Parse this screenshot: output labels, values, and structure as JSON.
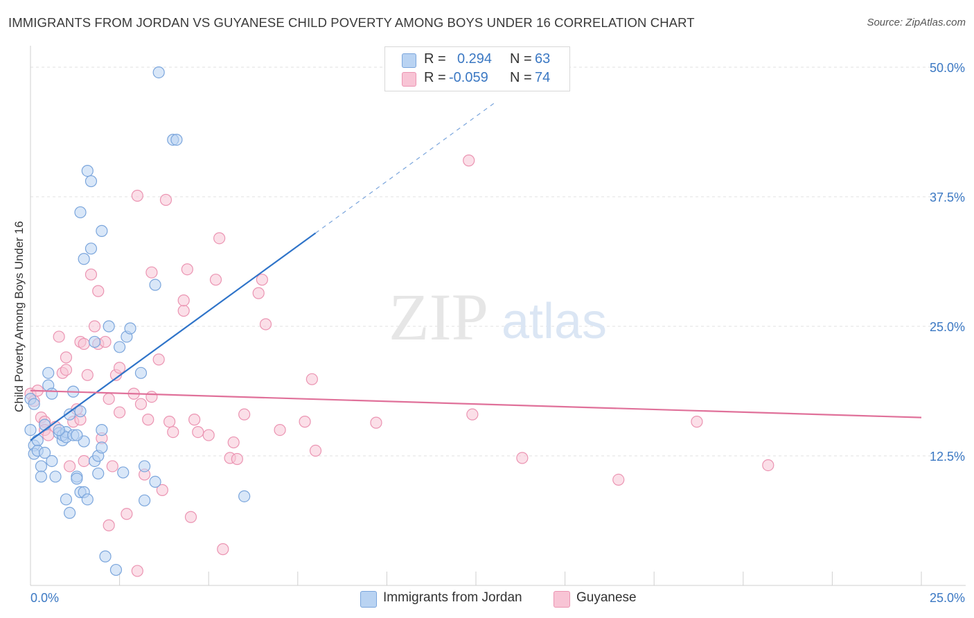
{
  "title": "IMMIGRANTS FROM JORDAN VS GUYANESE CHILD POVERTY AMONG BOYS UNDER 16 CORRELATION CHART",
  "source": "Source: ZipAtlas.com",
  "watermark": {
    "zip": "ZIP",
    "atlas": "atlas"
  },
  "legend": {
    "rows": [
      {
        "r_label": "R =",
        "r_value": "0.294",
        "n_label": "N =",
        "n_value": "63"
      },
      {
        "r_label": "R =",
        "r_value": "-0.059",
        "n_label": "N =",
        "n_value": "74"
      }
    ]
  },
  "colors": {
    "blue_fill": "#b9d3f2",
    "blue_stroke": "#7aa5dc",
    "blue_line": "#2f74c9",
    "pink_fill": "#f8c4d5",
    "pink_stroke": "#eb94b2",
    "pink_line": "#e0719a",
    "axis_text": "#3b78c3",
    "grid": "#e2e2e2"
  },
  "chart_data": {
    "type": "scatter",
    "title": "IMMIGRANTS FROM JORDAN VS GUYANESE CHILD POVERTY AMONG BOYS UNDER 16 CORRELATION CHART",
    "xlabel": "",
    "ylabel": "Child Poverty Among Boys Under 16",
    "xlim": [
      0,
      25
    ],
    "ylim": [
      0,
      50
    ],
    "x_tick_labels": [
      "0.0%",
      "25.0%"
    ],
    "y_ticks": [
      12.5,
      25.0,
      37.5,
      50.0
    ],
    "y_tick_labels": [
      "12.5%",
      "25.0%",
      "37.5%",
      "50.0%"
    ],
    "series": [
      {
        "name": "Immigrants from Jordan",
        "color": "#b9d3f2",
        "trend": {
          "x0": 0.0,
          "y0": 14.0,
          "x1": 8.0,
          "y1": 34.0,
          "dash_to_x": 13.0
        },
        "points": [
          [
            0.0,
            18.0
          ],
          [
            0.0,
            15.0
          ],
          [
            0.1,
            17.5
          ],
          [
            0.1,
            13.5
          ],
          [
            0.1,
            12.7
          ],
          [
            0.2,
            14.0
          ],
          [
            0.2,
            13.0
          ],
          [
            0.3,
            11.5
          ],
          [
            0.3,
            10.5
          ],
          [
            0.4,
            15.5
          ],
          [
            0.4,
            12.8
          ],
          [
            0.5,
            20.5
          ],
          [
            0.5,
            19.3
          ],
          [
            0.6,
            18.5
          ],
          [
            0.6,
            12.0
          ],
          [
            0.7,
            10.5
          ],
          [
            0.8,
            14.7
          ],
          [
            0.9,
            14.0
          ],
          [
            0.9,
            14.5
          ],
          [
            1.0,
            14.8
          ],
          [
            1.0,
            14.3
          ],
          [
            1.0,
            8.3
          ],
          [
            1.1,
            7.0
          ],
          [
            1.1,
            16.5
          ],
          [
            1.2,
            18.7
          ],
          [
            1.2,
            14.5
          ],
          [
            1.3,
            10.5
          ],
          [
            1.3,
            10.3
          ],
          [
            1.4,
            16.8
          ],
          [
            1.4,
            9.0
          ],
          [
            1.5,
            9.0
          ],
          [
            1.5,
            13.9
          ],
          [
            1.6,
            8.3
          ],
          [
            1.4,
            36.0
          ],
          [
            1.5,
            31.5
          ],
          [
            1.6,
            40.0
          ],
          [
            1.7,
            39.0
          ],
          [
            1.7,
            32.5
          ],
          [
            1.8,
            23.5
          ],
          [
            1.8,
            12.0
          ],
          [
            1.9,
            12.5
          ],
          [
            1.9,
            10.8
          ],
          [
            2.0,
            34.2
          ],
          [
            2.0,
            15.0
          ],
          [
            2.0,
            13.3
          ],
          [
            2.1,
            2.8
          ],
          [
            2.2,
            25.0
          ],
          [
            2.4,
            1.5
          ],
          [
            2.5,
            23.0
          ],
          [
            2.6,
            10.9
          ],
          [
            2.7,
            24.0
          ],
          [
            2.8,
            24.8
          ],
          [
            3.1,
            20.5
          ],
          [
            3.2,
            11.5
          ],
          [
            3.2,
            8.2
          ],
          [
            3.5,
            10.0
          ],
          [
            3.5,
            29.0
          ],
          [
            3.6,
            49.5
          ],
          [
            4.0,
            43.0
          ],
          [
            4.1,
            43.0
          ],
          [
            6.0,
            8.6
          ],
          [
            1.3,
            14.5
          ],
          [
            0.8,
            15.0
          ]
        ]
      },
      {
        "name": "Guyanese",
        "color": "#f8c4d5",
        "trend": {
          "x0": 0.0,
          "y0": 18.8,
          "x1": 25.0,
          "y1": 16.2
        },
        "points": [
          [
            0.0,
            18.5
          ],
          [
            0.1,
            17.8
          ],
          [
            0.2,
            18.8
          ],
          [
            0.3,
            16.2
          ],
          [
            0.4,
            15.8
          ],
          [
            0.4,
            15.0
          ],
          [
            0.5,
            14.5
          ],
          [
            0.7,
            15.3
          ],
          [
            0.8,
            24.0
          ],
          [
            0.9,
            20.5
          ],
          [
            1.0,
            22.0
          ],
          [
            1.0,
            20.8
          ],
          [
            1.1,
            11.5
          ],
          [
            1.2,
            15.8
          ],
          [
            1.3,
            17.0
          ],
          [
            1.4,
            16.0
          ],
          [
            1.4,
            23.5
          ],
          [
            1.5,
            23.3
          ],
          [
            1.5,
            12.0
          ],
          [
            1.6,
            20.3
          ],
          [
            1.7,
            30.0
          ],
          [
            1.8,
            25.0
          ],
          [
            1.9,
            28.4
          ],
          [
            1.9,
            23.3
          ],
          [
            2.0,
            14.2
          ],
          [
            2.1,
            23.5
          ],
          [
            2.2,
            18.0
          ],
          [
            2.2,
            5.8
          ],
          [
            2.3,
            11.5
          ],
          [
            2.4,
            20.3
          ],
          [
            2.5,
            21.0
          ],
          [
            2.5,
            16.7
          ],
          [
            2.7,
            6.9
          ],
          [
            2.9,
            18.5
          ],
          [
            3.0,
            37.6
          ],
          [
            3.0,
            1.4
          ],
          [
            3.1,
            17.5
          ],
          [
            3.2,
            10.7
          ],
          [
            3.3,
            16.0
          ],
          [
            3.4,
            18.2
          ],
          [
            3.4,
            30.2
          ],
          [
            3.6,
            21.8
          ],
          [
            3.7,
            9.2
          ],
          [
            3.8,
            37.2
          ],
          [
            3.9,
            15.8
          ],
          [
            4.0,
            14.8
          ],
          [
            4.3,
            26.5
          ],
          [
            4.3,
            27.5
          ],
          [
            4.4,
            30.5
          ],
          [
            4.5,
            6.6
          ],
          [
            4.6,
            16.0
          ],
          [
            4.7,
            14.8
          ],
          [
            5.0,
            14.5
          ],
          [
            5.2,
            29.5
          ],
          [
            5.3,
            33.5
          ],
          [
            5.4,
            3.5
          ],
          [
            5.6,
            12.3
          ],
          [
            5.7,
            13.8
          ],
          [
            5.8,
            12.2
          ],
          [
            6.0,
            16.5
          ],
          [
            6.4,
            28.2
          ],
          [
            6.5,
            29.5
          ],
          [
            6.6,
            25.2
          ],
          [
            7.0,
            15.0
          ],
          [
            7.7,
            15.8
          ],
          [
            7.9,
            19.9
          ],
          [
            8.0,
            13.0
          ],
          [
            9.7,
            15.7
          ],
          [
            12.3,
            41.0
          ],
          [
            12.4,
            16.5
          ],
          [
            13.8,
            12.3
          ],
          [
            16.5,
            10.2
          ],
          [
            18.7,
            15.8
          ],
          [
            20.7,
            11.6
          ]
        ]
      }
    ]
  },
  "bottom_legend": [
    "Immigrants from Jordan",
    "Guyanese"
  ]
}
